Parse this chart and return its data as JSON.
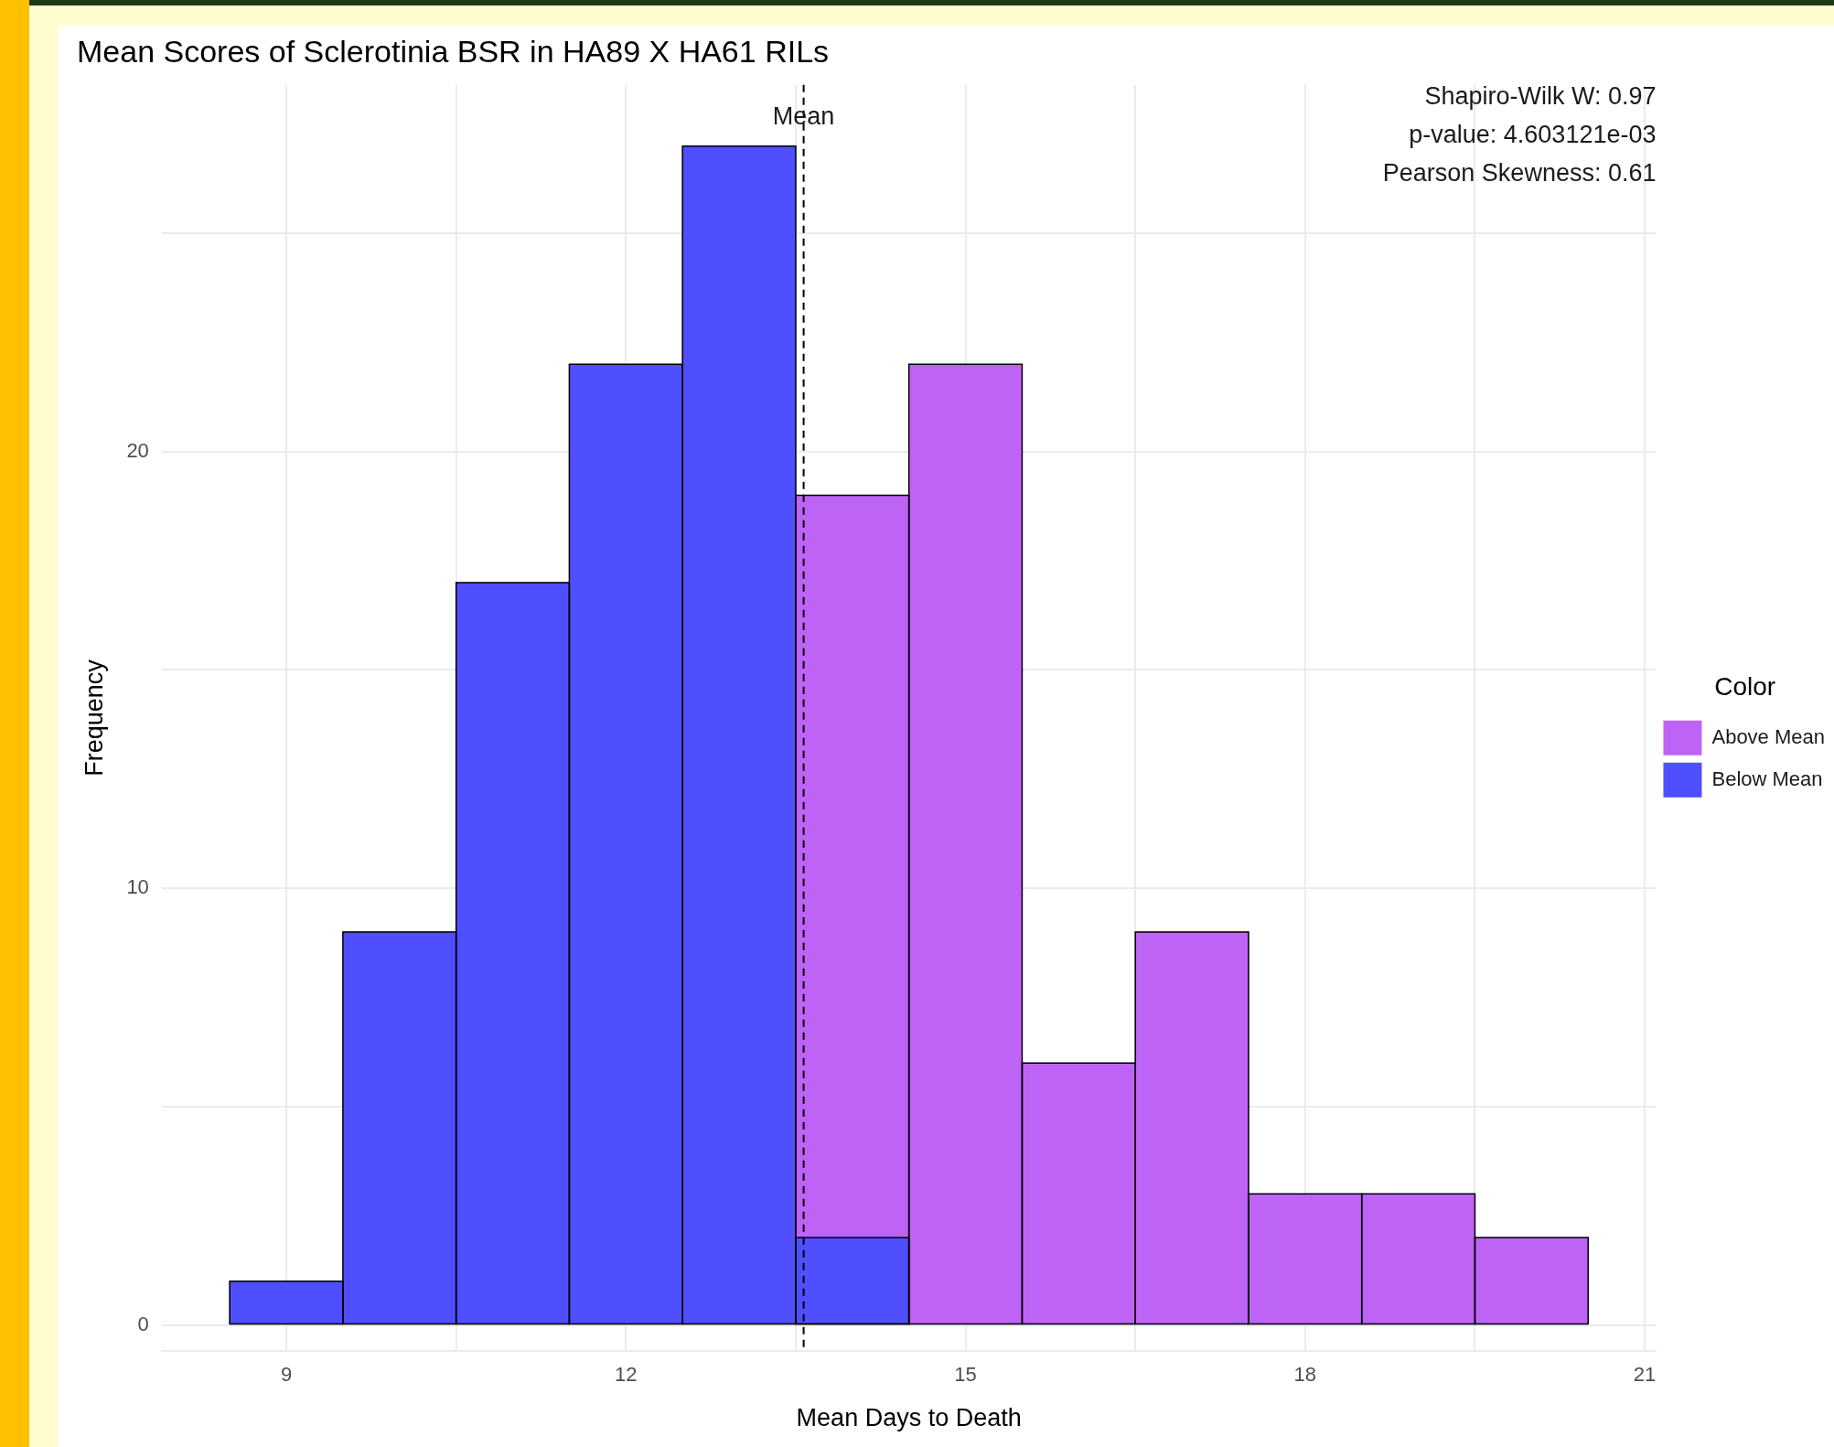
{
  "chart_data": {
    "type": "histogram",
    "title": "Mean Scores of Sclerotinia BSR in HA89 X HA61 RILs",
    "xlabel": "Mean Days to Death",
    "ylabel": "Frequency",
    "legend_title": "Color",
    "bins": [
      8.5,
      9.5,
      10.5,
      11.5,
      12.5,
      13.5,
      14.5,
      15.5,
      16.5,
      17.5,
      18.5,
      19.5,
      20.5
    ],
    "series": [
      {
        "name": "Above Mean",
        "color": "#bd63f5",
        "values": [
          null,
          null,
          null,
          null,
          null,
          19,
          22,
          6,
          9,
          3,
          3,
          2
        ]
      },
      {
        "name": "Below Mean",
        "color": "#4f4fff",
        "values": [
          1,
          9,
          17,
          22,
          27,
          2,
          null,
          null,
          null,
          null,
          null,
          null
        ]
      }
    ],
    "xlim": [
      7.9,
      21.1
    ],
    "xticks": [
      9,
      {
        "value": 10.5,
        "label": null
      },
      12,
      {
        "value": 13.5,
        "label": null
      },
      15,
      {
        "value": 16.5,
        "label": null
      },
      18,
      {
        "value": 19.5,
        "label": null
      },
      21
    ],
    "ylim": [
      -0.6,
      28.4
    ],
    "yticks": [
      0,
      {
        "value": 5,
        "label": null
      },
      10,
      {
        "value": 15,
        "label": null
      },
      20,
      {
        "value": 25,
        "label": null
      }
    ],
    "grid": true,
    "legend": "right",
    "ref_lines": [
      {
        "axis": "x",
        "value": 13.57,
        "label": "Mean",
        "color": "#000000",
        "line_style": "dashed"
      }
    ],
    "annotations": [
      "Shapiro-Wilk W: 0.97",
      "p-value: 4.603121e-03",
      "Pearson Skewness: 0.61"
    ]
  }
}
